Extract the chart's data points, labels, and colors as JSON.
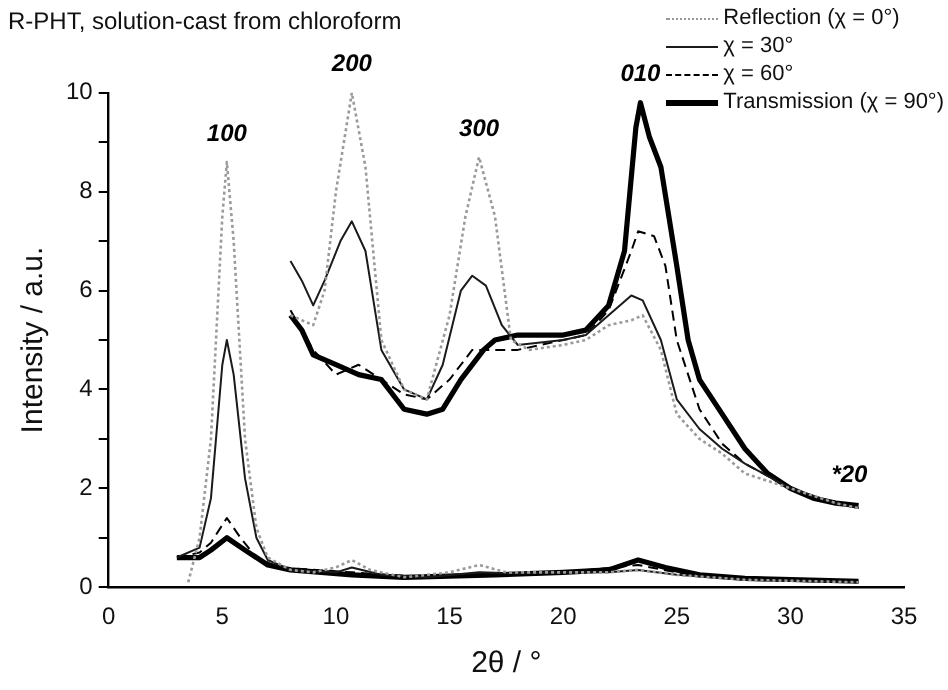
{
  "chart_data": {
    "type": "line",
    "title": "R-PHT, solution-cast from chloroform",
    "xlabel": "2θ / °",
    "ylabel": "Intensity / a.u.",
    "xlim": [
      0,
      35
    ],
    "xticks": [
      0,
      5,
      10,
      15,
      20,
      25,
      30,
      35
    ],
    "ylim": [
      0,
      10
    ],
    "yticks": [
      0,
      {
        "value": 1,
        "label": null
      },
      2,
      {
        "value": 3,
        "label": null
      },
      4,
      {
        "value": 5,
        "label": null
      },
      6,
      {
        "value": 7,
        "label": null
      },
      8,
      {
        "value": 9,
        "label": null
      },
      10
    ],
    "grid": false,
    "legend": "top right",
    "marker": "none",
    "annotations": [
      {
        "text": "100",
        "x": 5.2,
        "y": 8.6
      },
      {
        "text": "200",
        "x": 10.7,
        "y": 10
      },
      {
        "text": "300",
        "x": 16.3,
        "y": 8.7
      },
      {
        "text": "010",
        "x": 23.4,
        "y": 9.8
      },
      {
        "text": "*20",
        "x": 32.6,
        "y": 1.7
      }
    ],
    "series": [
      {
        "name": "Reflection (χ = 0°)",
        "color": "#9a9a9a",
        "line_style": "dotted",
        "x": [
          3.5,
          4,
          4.5,
          5,
          5.2,
          5.5,
          6,
          6.5,
          7,
          8,
          9,
          10,
          10.7,
          11.5,
          13,
          15,
          16.3,
          17.5,
          20,
          22,
          23.3,
          25,
          28,
          33
        ],
        "values": [
          0.1,
          1.0,
          3,
          7.5,
          8.6,
          7,
          3,
          1.2,
          0.6,
          0.35,
          0.3,
          0.4,
          0.55,
          0.35,
          0.2,
          0.3,
          0.45,
          0.3,
          0.3,
          0.3,
          0.35,
          0.25,
          0.15,
          0.1
        ]
      },
      {
        "name": "χ = 30°",
        "color": "#1a1a1a",
        "line_style": "solid",
        "x": [
          3,
          4,
          4.5,
          5,
          5.2,
          5.5,
          6,
          6.5,
          7,
          8,
          10,
          10.7,
          12,
          14,
          16.3,
          18,
          20,
          22,
          23.3,
          25,
          28,
          33
        ],
        "values": [
          0.6,
          0.8,
          1.8,
          4.5,
          5.0,
          4.3,
          2.2,
          1.0,
          0.55,
          0.35,
          0.3,
          0.4,
          0.25,
          0.2,
          0.3,
          0.28,
          0.3,
          0.3,
          0.35,
          0.25,
          0.15,
          0.1
        ]
      },
      {
        "name": "χ = 60°",
        "color": "#000000",
        "line_style": "dashed",
        "x": [
          3,
          4,
          4.5,
          5.2,
          5.8,
          6.5,
          7.5,
          10.7,
          14,
          20,
          23.3,
          25,
          28,
          33
        ],
        "values": [
          0.6,
          0.7,
          0.9,
          1.4,
          1.0,
          0.6,
          0.4,
          0.3,
          0.2,
          0.3,
          0.45,
          0.3,
          0.15,
          0.1
        ]
      },
      {
        "name": "Transmission (χ = 90°)",
        "color": "#000000",
        "line_style": "solid",
        "x": [
          3,
          4,
          4.5,
          5.2,
          6,
          7,
          8,
          10.7,
          13,
          17,
          20,
          22,
          23.3,
          24.5,
          26,
          28,
          33
        ],
        "values": [
          0.6,
          0.6,
          0.75,
          1.0,
          0.75,
          0.45,
          0.35,
          0.25,
          0.2,
          0.25,
          0.3,
          0.35,
          0.55,
          0.4,
          0.25,
          0.18,
          0.12
        ]
      },
      {
        "color": "#9a9a9a",
        "line_style": "dotted",
        "x": [
          8,
          9,
          9.5,
          10,
          10.7,
          11.3,
          12,
          13,
          14,
          15,
          15.7,
          16.3,
          17,
          17.7,
          18.5,
          20,
          21,
          22,
          23,
          23.5,
          24.3,
          25,
          26,
          27,
          28,
          30,
          32,
          33
        ],
        "values": [
          5.5,
          5.3,
          6,
          8,
          10,
          8.5,
          5,
          4,
          3.8,
          5.5,
          7.5,
          8.7,
          7.5,
          5,
          4.8,
          4.9,
          5,
          5.3,
          5.4,
          5.5,
          4.8,
          3.5,
          3,
          2.7,
          2.3,
          2.0,
          1.7,
          1.6
        ]
      },
      {
        "color": "#1a1a1a",
        "line_style": "solid",
        "x": [
          8,
          8.5,
          9,
          9.5,
          10.2,
          10.7,
          11.3,
          12,
          13,
          14,
          14.7,
          15.5,
          16,
          16.6,
          17.3,
          18,
          20,
          21,
          22,
          23,
          23.5,
          24.3,
          25,
          26,
          27,
          28,
          30,
          32,
          33
        ],
        "values": [
          6.6,
          6.2,
          5.7,
          6.2,
          7,
          7.4,
          6.8,
          4.8,
          4.0,
          3.8,
          4.5,
          6,
          6.3,
          6.1,
          5.3,
          4.9,
          5,
          5.1,
          5.5,
          5.9,
          5.8,
          5,
          3.8,
          3.2,
          2.8,
          2.5,
          2.0,
          1.7,
          1.6
        ]
      },
      {
        "color": "#000000",
        "line_style": "dashed",
        "x": [
          8,
          9,
          10,
          11,
          12,
          13,
          14,
          15,
          16,
          17,
          18,
          20,
          21,
          22,
          23,
          23.3,
          24,
          24.5,
          25,
          26,
          27,
          28,
          30,
          32,
          33
        ],
        "values": [
          5.6,
          4.8,
          4.3,
          4.5,
          4.2,
          3.9,
          3.8,
          4.2,
          4.8,
          4.8,
          4.8,
          5,
          5.1,
          5.6,
          6.8,
          7.2,
          7.1,
          6.5,
          5,
          3.6,
          2.9,
          2.5,
          2.0,
          1.7,
          1.6
        ]
      },
      {
        "color": "#000000",
        "line_style": "solid",
        "x": [
          8,
          8.5,
          9,
          10,
          11,
          12,
          13,
          14,
          14.7,
          15.5,
          16.5,
          17,
          18,
          20,
          21,
          22,
          22.7,
          23.2,
          23.4,
          23.8,
          24.3,
          25,
          25.5,
          26,
          27,
          28,
          29,
          30,
          31,
          32,
          33
        ],
        "values": [
          5.5,
          5.2,
          4.7,
          4.5,
          4.3,
          4.2,
          3.6,
          3.5,
          3.6,
          4.2,
          4.8,
          5,
          5.1,
          5.1,
          5.2,
          5.7,
          6.8,
          9.3,
          9.8,
          9.1,
          8.5,
          6.5,
          5,
          4.2,
          3.5,
          2.8,
          2.3,
          2.0,
          1.8,
          1.7,
          1.65
        ]
      }
    ]
  }
}
